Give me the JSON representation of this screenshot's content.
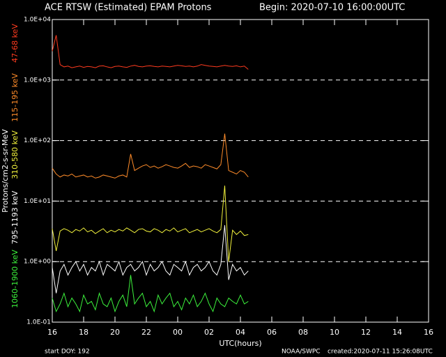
{
  "chart_data": {
    "type": "line",
    "title": "ACE RTSW (Estimated) EPAM Protons",
    "begin": "Begin: 2020-07-10 16:00:00UTC",
    "xlabel": "UTC(hours)",
    "ylabel": "Protons/cm2-s-sr-MeV",
    "footer_left": "start DOY:  192",
    "footer_center": "NOAA/SWPC",
    "footer_right": "created:2020-07-11 15:26:08UTC",
    "ylog": true,
    "grid": true,
    "xlim": [
      16,
      40
    ],
    "ylim": [
      0.1,
      10000
    ],
    "xticks": [
      16,
      18,
      20,
      22,
      {
        "value": 24,
        "label": "00"
      },
      {
        "value": 26,
        "label": "02"
      },
      {
        "value": 28,
        "label": "04"
      },
      {
        "value": 30,
        "label": "06"
      },
      {
        "value": 32,
        "label": "08"
      },
      {
        "value": 34,
        "label": "10"
      },
      {
        "value": 36,
        "label": "12"
      },
      {
        "value": 38,
        "label": "14"
      },
      {
        "value": 40,
        "label": "16"
      }
    ],
    "yticks": [
      {
        "value": 0.1,
        "label": "1.0E-01"
      },
      {
        "value": 1,
        "label": "1.0E+00"
      },
      {
        "value": 10,
        "label": "1.0E+01"
      },
      {
        "value": 100,
        "label": "1.0E+02"
      },
      {
        "value": 1000,
        "label": "1.0E+03"
      },
      {
        "value": 10000,
        "label": "1.0E+04"
      }
    ],
    "x": [
      16,
      16.25,
      16.5,
      16.75,
      17,
      17.25,
      17.5,
      17.75,
      18,
      18.25,
      18.5,
      18.75,
      19,
      19.25,
      19.5,
      19.75,
      20,
      20.25,
      20.5,
      20.75,
      21,
      21.25,
      21.5,
      21.75,
      22,
      22.25,
      22.5,
      22.75,
      23,
      23.25,
      23.5,
      23.75,
      24,
      24.25,
      24.5,
      24.75,
      25,
      25.25,
      25.5,
      25.75,
      26,
      26.25,
      26.5,
      26.75,
      27,
      27.25,
      27.5,
      27.75,
      28,
      28.25,
      28.5
    ],
    "series": [
      {
        "name": "47-68 keV",
        "color": "#ff3b1f",
        "values": [
          3000,
          5500,
          1800,
          1650,
          1700,
          1600,
          1650,
          1700,
          1620,
          1680,
          1650,
          1600,
          1700,
          1720,
          1650,
          1600,
          1680,
          1700,
          1650,
          1620,
          1700,
          1750,
          1680,
          1650,
          1700,
          1720,
          1680,
          1650,
          1700,
          1680,
          1650,
          1700,
          1750,
          1720,
          1680,
          1700,
          1650,
          1700,
          1800,
          1750,
          1700,
          1680,
          1650,
          1700,
          1750,
          1700,
          1680,
          1720,
          1650,
          1700,
          1500
        ]
      },
      {
        "name": "115-195 keV",
        "color": "#ff8c2a",
        "values": [
          35,
          28,
          25,
          27,
          26,
          28,
          25,
          26,
          27,
          25,
          26,
          24,
          25,
          27,
          26,
          25,
          24,
          26,
          27,
          25,
          60,
          32,
          35,
          38,
          40,
          36,
          38,
          35,
          37,
          40,
          38,
          36,
          35,
          38,
          42,
          36,
          38,
          37,
          35,
          40,
          38,
          36,
          34,
          40,
          130,
          32,
          30,
          28,
          32,
          30,
          25
        ]
      },
      {
        "name": "310-580 keV",
        "color": "#f2f23c",
        "values": [
          3.5,
          1.5,
          3.2,
          3.5,
          3.3,
          3.0,
          3.4,
          3.2,
          3.6,
          3.1,
          3.3,
          2.9,
          3.2,
          3.5,
          3.0,
          3.3,
          3.1,
          3.4,
          3.2,
          3.6,
          3.3,
          3.0,
          3.4,
          3.5,
          3.2,
          3.1,
          3.5,
          3.3,
          3.0,
          3.4,
          3.2,
          3.6,
          3.1,
          3.3,
          3.5,
          3.0,
          3.2,
          3.4,
          3.1,
          3.3,
          3.5,
          3.2,
          3.0,
          3.4,
          18,
          1.0,
          3.3,
          2.8,
          3.2,
          2.7,
          2.8
        ]
      },
      {
        "name": "795-1193 keV",
        "color": "#ffffff",
        "values": [
          0.8,
          0.3,
          0.7,
          0.9,
          0.6,
          0.8,
          1.0,
          0.7,
          0.9,
          0.6,
          0.8,
          0.7,
          1.0,
          0.6,
          0.9,
          0.8,
          0.7,
          1.0,
          0.6,
          0.8,
          0.9,
          0.7,
          0.8,
          1.0,
          0.6,
          0.9,
          0.7,
          0.8,
          1.0,
          0.7,
          0.6,
          0.9,
          0.8,
          0.7,
          1.0,
          0.6,
          0.8,
          0.9,
          0.7,
          0.8,
          1.0,
          0.7,
          0.6,
          0.9,
          4.0,
          0.5,
          0.9,
          0.7,
          0.8,
          0.6,
          0.7
        ]
      },
      {
        "name": "1060-1900 keV",
        "color": "#3cf23c",
        "values": [
          0.25,
          0.15,
          0.2,
          0.3,
          0.18,
          0.25,
          0.2,
          0.15,
          0.28,
          0.2,
          0.22,
          0.16,
          0.3,
          0.2,
          0.18,
          0.25,
          0.15,
          0.22,
          0.28,
          0.18,
          0.6,
          0.2,
          0.25,
          0.3,
          0.18,
          0.22,
          0.15,
          0.28,
          0.2,
          0.25,
          0.3,
          0.18,
          0.22,
          0.16,
          0.25,
          0.2,
          0.28,
          0.18,
          0.22,
          0.3,
          0.2,
          0.15,
          0.25,
          0.2,
          0.18,
          0.25,
          0.22,
          0.2,
          0.28,
          0.2,
          0.22
        ]
      }
    ]
  }
}
